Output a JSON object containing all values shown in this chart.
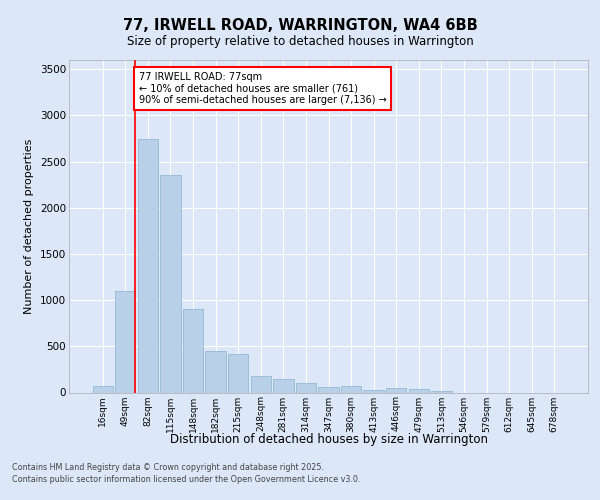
{
  "title_line1": "77, IRWELL ROAD, WARRINGTON, WA4 6BB",
  "title_line2": "Size of property relative to detached houses in Warrington",
  "xlabel": "Distribution of detached houses by size in Warrington",
  "ylabel": "Number of detached properties",
  "categories": [
    "16sqm",
    "49sqm",
    "82sqm",
    "115sqm",
    "148sqm",
    "182sqm",
    "215sqm",
    "248sqm",
    "281sqm",
    "314sqm",
    "347sqm",
    "380sqm",
    "413sqm",
    "446sqm",
    "479sqm",
    "513sqm",
    "546sqm",
    "579sqm",
    "612sqm",
    "645sqm",
    "678sqm"
  ],
  "values": [
    75,
    1100,
    2750,
    2350,
    900,
    450,
    420,
    175,
    150,
    100,
    60,
    75,
    30,
    50,
    35,
    20,
    0,
    0,
    0,
    0,
    0
  ],
  "bar_color": "#b8d0e8",
  "bar_edge_color": "#8ab0d0",
  "vline_color": "red",
  "annotation_text": "77 IRWELL ROAD: 77sqm\n← 10% of detached houses are smaller (761)\n90% of semi-detached houses are larger (7,136) →",
  "annotation_box_color": "white",
  "annotation_box_edge_color": "red",
  "ylim": [
    0,
    3600
  ],
  "yticks": [
    0,
    500,
    1000,
    1500,
    2000,
    2500,
    3000,
    3500
  ],
  "bg_color": "#dce8f8",
  "plot_bg_color": "#dce8f8",
  "grid_color": "white",
  "footer_line1": "Contains HM Land Registry data © Crown copyright and database right 2025.",
  "footer_line2": "Contains public sector information licensed under the Open Government Licence v3.0."
}
